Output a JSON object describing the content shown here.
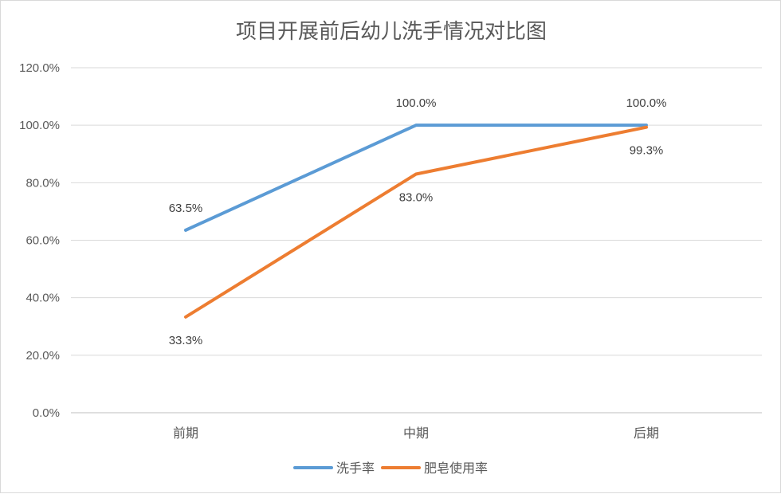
{
  "chart_data": {
    "type": "line",
    "title": "项目开展前后幼儿洗手情况对比图",
    "categories": [
      "前期",
      "中期",
      "后期"
    ],
    "ylim": [
      0,
      120
    ],
    "ytick_step": 20,
    "y_tick_labels": [
      "0.0%",
      "20.0%",
      "40.0%",
      "60.0%",
      "80.0%",
      "100.0%",
      "120.0%"
    ],
    "grid": true,
    "legend_position": "bottom",
    "series": [
      {
        "name": "洗手率",
        "color": "#5B9BD5",
        "values": [
          63.5,
          100.0,
          100.0
        ],
        "labels": [
          "63.5%",
          "100.0%",
          "100.0%"
        ],
        "label_position": "above"
      },
      {
        "name": "肥皂使用率",
        "color": "#ED7D31",
        "values": [
          33.3,
          83.0,
          99.3
        ],
        "labels": [
          "33.3%",
          "83.0%",
          "99.3%"
        ],
        "label_position": "below"
      }
    ]
  }
}
